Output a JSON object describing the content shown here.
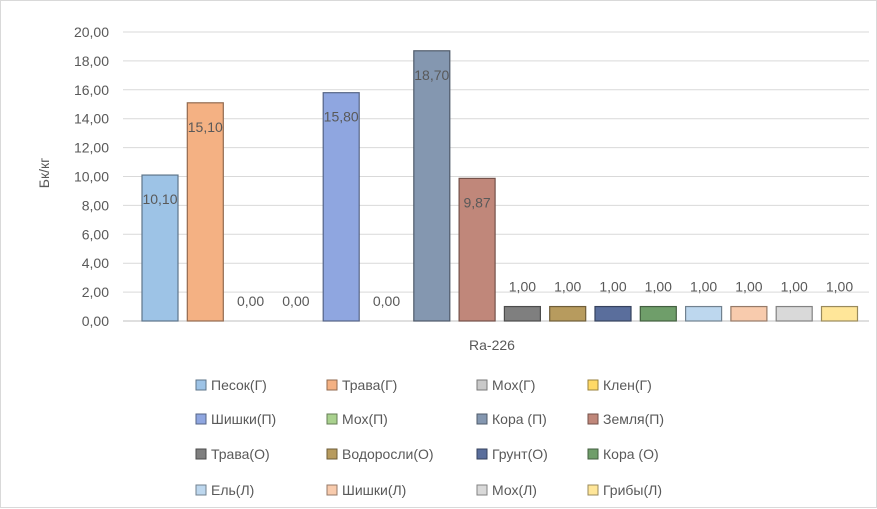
{
  "chart_data": {
    "type": "bar",
    "categories": [
      "Ra-226"
    ],
    "ylabel": "Бк/кг",
    "xlabel": "",
    "ylim": [
      0,
      20
    ],
    "ytick_step": 2,
    "y_tick_labels": [
      "0,00",
      "2,00",
      "4,00",
      "6,00",
      "8,00",
      "10,00",
      "12,00",
      "14,00",
      "16,00",
      "18,00",
      "20,00"
    ],
    "grid": true,
    "legend_position": "bottom",
    "series": [
      {
        "name": "Песок(Г)",
        "values": [
          10.1
        ],
        "label": "10,10",
        "color": "#9dc3e6"
      },
      {
        "name": "Трава(Г)",
        "values": [
          15.1
        ],
        "label": "15,10",
        "color": "#f4b183"
      },
      {
        "name": "Мох(Г)",
        "values": [
          0.0
        ],
        "label": "0,00",
        "color": "#c9c9c9"
      },
      {
        "name": "Клен(Г)",
        "values": [
          0.0
        ],
        "label": "0,00",
        "color": "#ffd966"
      },
      {
        "name": "Шишки(П)",
        "values": [
          15.8
        ],
        "label": "15,80",
        "color": "#8fa6e0"
      },
      {
        "name": "Мох(П)",
        "values": [
          0.0
        ],
        "label": "0,00",
        "color": "#a9d18e"
      },
      {
        "name": "Кора (П)",
        "values": [
          18.7
        ],
        "label": "18,70",
        "color": "#8497b0"
      },
      {
        "name": "Земля(П)",
        "values": [
          9.87
        ],
        "label": "9,87",
        "color": "#c0877a"
      },
      {
        "name": "Трава(О)",
        "values": [
          1.0
        ],
        "label": "1,00",
        "color": "#7f7f7f"
      },
      {
        "name": "Водоросли(О)",
        "values": [
          1.0
        ],
        "label": "1,00",
        "color": "#b79b5e"
      },
      {
        "name": "Грунт(О)",
        "values": [
          1.0
        ],
        "label": "1,00",
        "color": "#5a6e9c"
      },
      {
        "name": "Кора (О)",
        "values": [
          1.0
        ],
        "label": "1,00",
        "color": "#6f9e6a"
      },
      {
        "name": "Ель(Л)",
        "values": [
          1.0
        ],
        "label": "1,00",
        "color": "#bdd7ee"
      },
      {
        "name": "Шишки(Л)",
        "values": [
          1.0
        ],
        "label": "1,00",
        "color": "#f8cbad"
      },
      {
        "name": "Мох(Л)",
        "values": [
          1.0
        ],
        "label": "1,00",
        "color": "#d9d9d9"
      },
      {
        "name": "Грибы(Л)",
        "values": [
          1.0
        ],
        "label": "1,00",
        "color": "#ffe699"
      }
    ]
  }
}
